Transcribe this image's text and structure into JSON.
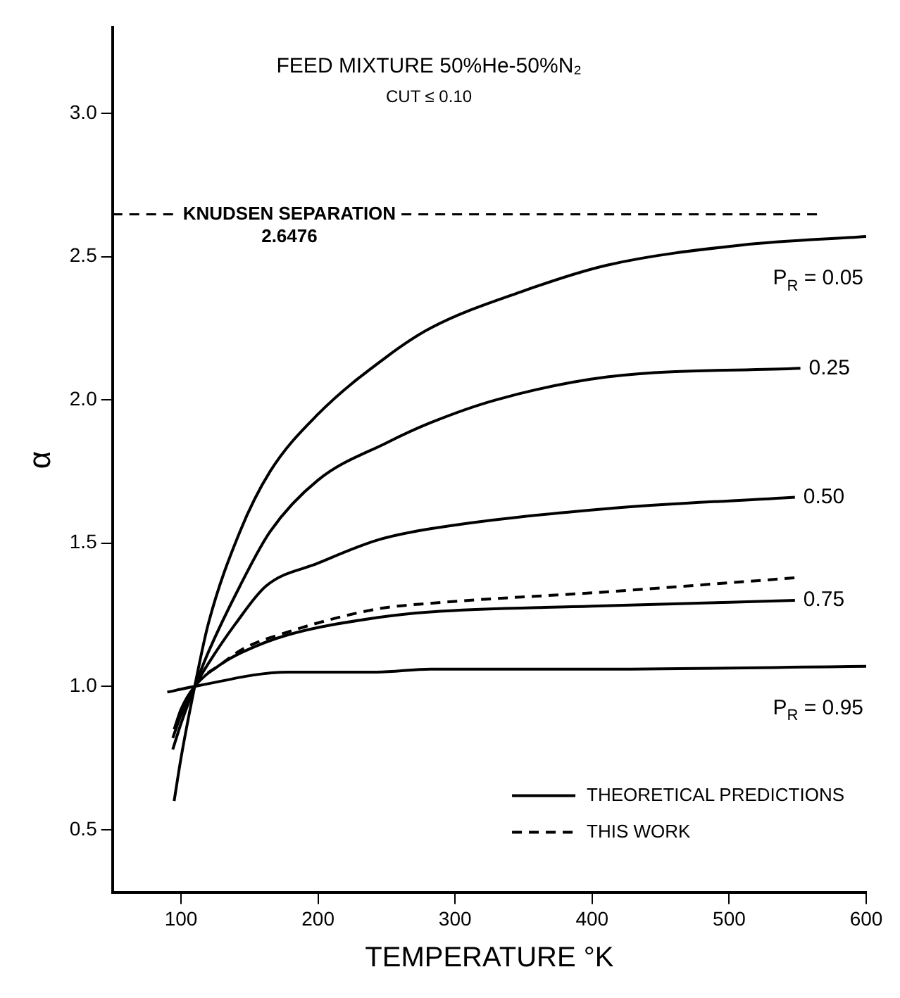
{
  "chart_data": {
    "type": "line",
    "title": "FEED MIXTURE 50%He-50%N₂",
    "subtitle": "CUT ≤ 0.10",
    "xlabel": "TEMPERATURE °K",
    "ylabel": "α",
    "xlim": [
      50,
      600
    ],
    "xticks": [
      100,
      200,
      300,
      400,
      500,
      600
    ],
    "ylim": [
      0.28,
      3.3
    ],
    "yticks": [
      {
        "value": 0.5,
        "label": "0.5"
      },
      {
        "value": 1,
        "label": "1.0"
      },
      {
        "value": 1.5,
        "label": "1.5"
      },
      {
        "value": 2,
        "label": "2.0"
      },
      {
        "value": 2.5,
        "label": "2.5"
      },
      {
        "value": 3,
        "label": "3.0"
      }
    ],
    "grid": false,
    "legend": "bottom right",
    "marker": "none",
    "series": [
      {
        "name": "THEORETICAL PREDICTIONS",
        "color": "#000000",
        "line_style": "solid",
        "x": [
          95,
          100,
          110,
          120,
          143,
          165,
          200,
          250,
          282,
          350,
          411,
          509,
          600
        ],
        "values": [
          0.6,
          0.75,
          1.0,
          1.22,
          1.54,
          1.75,
          1.95,
          2.15,
          2.25,
          2.38,
          2.47,
          2.54,
          2.57
        ]
      },
      {
        "color": "#000000",
        "line_style": "solid",
        "x": [
          94,
          100,
          110,
          120,
          143,
          165,
          200,
          250,
          282,
          330,
          411,
          552
        ],
        "values": [
          0.78,
          0.87,
          1.0,
          1.12,
          1.35,
          1.54,
          1.72,
          1.85,
          1.92,
          2.0,
          2.08,
          2.11
        ]
      },
      {
        "color": "#000000",
        "line_style": "solid",
        "x": [
          94,
          100,
          110,
          120,
          140,
          162,
          200,
          243,
          282,
          411,
          548
        ],
        "values": [
          0.82,
          0.9,
          1.0,
          1.08,
          1.22,
          1.35,
          1.43,
          1.51,
          1.55,
          1.62,
          1.66
        ]
      },
      {
        "color": "#000000",
        "line_style": "solid",
        "x": [
          95,
          100,
          110,
          130,
          145,
          178,
          243,
          282,
          400,
          548
        ],
        "values": [
          0.85,
          0.92,
          1.0,
          1.08,
          1.12,
          1.18,
          1.24,
          1.26,
          1.28,
          1.3
        ]
      },
      {
        "color": "#000000",
        "line_style": "solid",
        "x": [
          90,
          110,
          178,
          243,
          282,
          400,
          600
        ],
        "values": [
          0.98,
          1.0,
          1.05,
          1.05,
          1.06,
          1.06,
          1.07
        ]
      },
      {
        "name": "THIS WORK",
        "color": "#000000",
        "line_style": "dashed",
        "x": [
          100,
          110,
          130,
          145,
          178,
          243,
          282,
          411,
          551
        ],
        "values": [
          0.9,
          1.0,
          1.08,
          1.13,
          1.19,
          1.27,
          1.29,
          1.33,
          1.38
        ]
      }
    ],
    "ref_lines": [
      {
        "axis": "y",
        "value": 2.6476,
        "label": "KNUDSEN SEPARATION 2.6476",
        "line_style": "dashed",
        "color": "#000000"
      }
    ],
    "annotations": [
      "P$_{R}$ = 0.05",
      "0.25",
      "0.50",
      "0.75",
      "P$_{R}$ = 0.95"
    ]
  }
}
